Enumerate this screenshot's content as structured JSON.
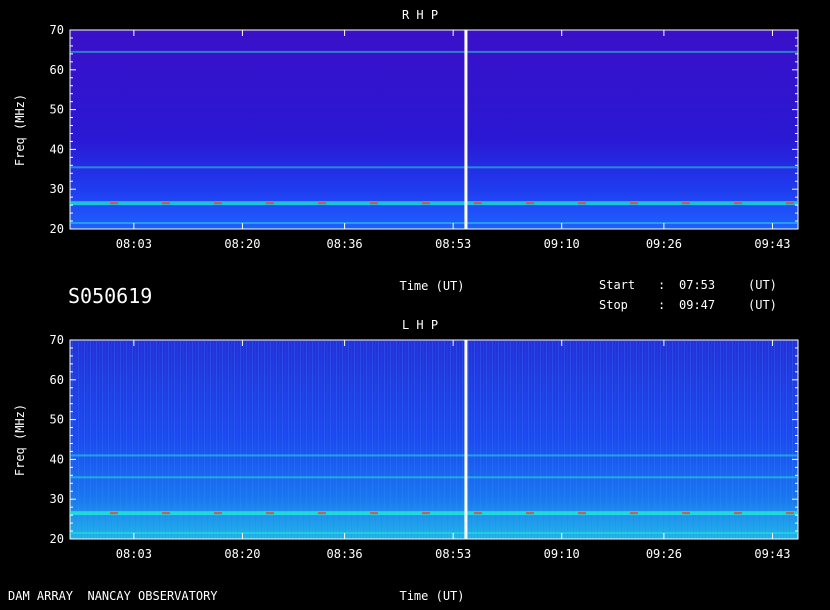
{
  "chart_data": [
    {
      "type": "heatmap",
      "title": "R H P",
      "xlabel": "Time (UT)",
      "ylabel": "Freq (MHz)",
      "ylim": [
        20,
        70
      ],
      "xlim": [
        "07:53",
        "09:47"
      ],
      "xticks": [
        "08:03",
        "08:20",
        "08:36",
        "08:53",
        "09:10",
        "09:26",
        "09:43"
      ],
      "yticks": [
        20,
        30,
        40,
        50,
        60,
        70
      ],
      "colors": {
        "background": "#2a18d4",
        "band": "#1fe8d0",
        "hot": "#ff3a20",
        "gap": "#ffffff"
      },
      "bands_mhz": [
        21.5,
        26.5,
        35.5,
        64.5
      ],
      "gap_time": "08:55"
    },
    {
      "type": "heatmap",
      "title": "L H P",
      "xlabel": "Time (UT)",
      "ylabel": "Freq (MHz)",
      "ylim": [
        20,
        70
      ],
      "xlim": [
        "07:53",
        "09:47"
      ],
      "xticks": [
        "08:03",
        "08:20",
        "08:36",
        "08:53",
        "09:10",
        "09:26",
        "09:43"
      ],
      "yticks": [
        20,
        30,
        40,
        50,
        60,
        70
      ],
      "colors": {
        "background": "#1b3de8",
        "band": "#22f0d2",
        "hot": "#ff3a20",
        "gap": "#ffffff"
      },
      "bands_mhz": [
        21.5,
        26.5,
        35.5,
        41.0
      ],
      "gap_time": "08:55"
    }
  ],
  "info": {
    "station": "S050619",
    "start_label": "Start",
    "start_sep": ":",
    "start_time": "07:53",
    "start_unit": "(UT)",
    "stop_label": "Stop",
    "stop_sep": ":",
    "stop_time": "09:47",
    "stop_unit": "(UT)",
    "footer": "DAM ARRAY  NANCAY OBSERVATORY"
  }
}
